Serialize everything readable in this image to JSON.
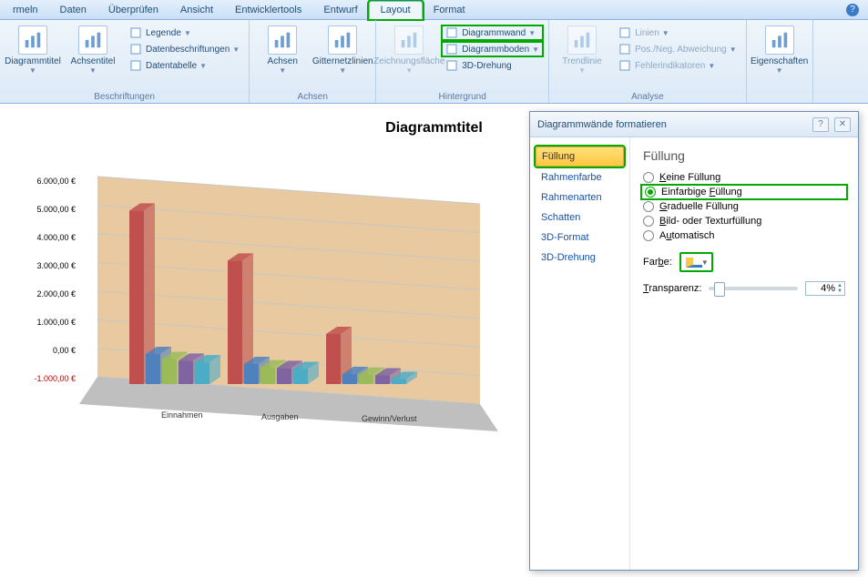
{
  "menu_tabs": {
    "items": [
      "rmeln",
      "Daten",
      "Überprüfen",
      "Ansicht",
      "Entwicklertools",
      "Entwurf",
      "Layout",
      "Format"
    ],
    "active": "Layout",
    "highlighted": "Layout"
  },
  "ribbon": {
    "groups": [
      {
        "label": "Beschriftungen",
        "big": [
          {
            "name": "diagrammtitel-button",
            "label": "Diagrammtitel",
            "icon": "chart-title-icon"
          },
          {
            "name": "achsentitel-button",
            "label": "Achsentitel",
            "icon": "axis-title-icon"
          }
        ],
        "small": [
          {
            "name": "legende-button",
            "label": "Legende",
            "caret": true
          },
          {
            "name": "datenbeschriftungen-button",
            "label": "Datenbeschriftungen",
            "caret": true
          },
          {
            "name": "datentabelle-button",
            "label": "Datentabelle",
            "caret": true
          }
        ]
      },
      {
        "label": "Achsen",
        "big": [
          {
            "name": "achsen-button",
            "label": "Achsen",
            "icon": "axes-icon"
          },
          {
            "name": "gitternetzlinien-button",
            "label": "Gitternetzlinien",
            "icon": "gridlines-icon"
          }
        ]
      },
      {
        "label": "Hintergrund",
        "big": [
          {
            "name": "zeichnungsflaeche-button",
            "label": "Zeichnungsfläche",
            "icon": "plot-area-icon",
            "disabled": true
          }
        ],
        "small": [
          {
            "name": "diagrammwand-button",
            "label": "Diagrammwand",
            "caret": true,
            "hi": true
          },
          {
            "name": "diagrammboden-button",
            "label": "Diagrammboden",
            "caret": true,
            "hi": true
          },
          {
            "name": "3d-drehung-button",
            "label": "3D-Drehung",
            "caret": false
          }
        ]
      },
      {
        "label": "Analyse",
        "big": [
          {
            "name": "trendlinie-button",
            "label": "Trendlinie",
            "icon": "trendline-icon",
            "disabled": true
          }
        ],
        "small": [
          {
            "name": "linien-button",
            "label": "Linien",
            "caret": true,
            "disabled": true
          },
          {
            "name": "posneg-button",
            "label": "Pos./Neg. Abweichung",
            "caret": true,
            "disabled": true
          },
          {
            "name": "fehlerindikatoren-button",
            "label": "Fehlerindikatoren",
            "caret": true,
            "disabled": true
          }
        ]
      },
      {
        "label": "",
        "big": [
          {
            "name": "eigenschaften-button",
            "label": "Eigenschaften",
            "icon": "properties-icon"
          }
        ]
      }
    ]
  },
  "chart": {
    "title": "Diagrammtitel",
    "y_labels": [
      "6.000,00 €",
      "5.000,00 €",
      "4.000,00 €",
      "3.000,00 €",
      "2.000,00 €",
      "1.000,00 €",
      "0,00 €",
      "-1.000,00 €"
    ],
    "ylim": [
      -1000,
      6000
    ],
    "categories": [
      "Einnahmen",
      "Ausgaben",
      "Gewinn/Verlust"
    ],
    "series_colors": [
      "#c0504d",
      "#4f81bd",
      "#9bbb59",
      "#8064a2",
      "#4bacc6"
    ],
    "values": [
      [
        5200,
        900,
        750,
        700,
        650
      ],
      [
        3700,
        600,
        500,
        480,
        450
      ],
      [
        1500,
        300,
        280,
        260,
        150
      ]
    ],
    "wall_color": "#e8c9a0",
    "floor_color": "#bfbfbf",
    "grid_color": "#c8c8c8"
  },
  "dialog": {
    "title": "Diagrammwände formatieren",
    "nav": [
      "Füllung",
      "Rahmenfarbe",
      "Rahmenarten",
      "Schatten",
      "3D-Format",
      "3D-Drehung"
    ],
    "nav_selected": 0,
    "pane_heading": "Füllung",
    "radios": [
      {
        "label_pre": "",
        "u": "K",
        "label_post": "eine Füllung",
        "checked": false
      },
      {
        "label_pre": "Einfarbige ",
        "u": "F",
        "label_post": "üllung",
        "checked": true,
        "hi": true
      },
      {
        "label_pre": "",
        "u": "G",
        "label_post": "raduelle Füllung",
        "checked": false
      },
      {
        "label_pre": "",
        "u": "B",
        "label_post": "ild- oder Texturfüllung",
        "checked": false
      },
      {
        "label_pre": "A",
        "u": "u",
        "label_post": "tomatisch",
        "checked": false
      }
    ],
    "color_label_pre": "Far",
    "color_label_u": "b",
    "color_label_post": "e:",
    "trans_label_u": "T",
    "trans_label_post": "ransparenz:",
    "transparency": "4%"
  }
}
